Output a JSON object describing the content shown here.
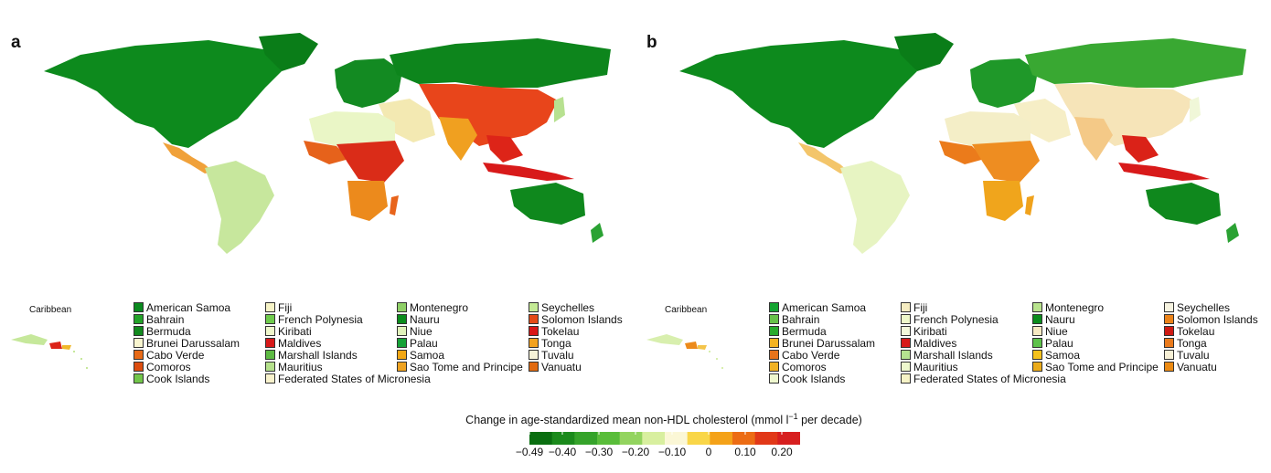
{
  "panels": [
    {
      "letter": "a",
      "caribbean_label": "Caribbean"
    },
    {
      "letter": "b",
      "caribbean_label": "Caribbean"
    }
  ],
  "legend_countries": [
    [
      "American Samoa",
      "Bahrain",
      "Bermuda",
      "Brunei Darussalam",
      "Cabo Verde",
      "Comoros",
      "Cook Islands"
    ],
    [
      "Fiji",
      "French Polynesia",
      "Kiribati",
      "Maldives",
      "Marshall Islands",
      "Mauritius",
      "Federated States of Micronesia"
    ],
    [
      "Montenegro",
      "Nauru",
      "Niue",
      "Palau",
      "Samoa",
      "Sao Tome and Principe"
    ],
    [
      "Seychelles",
      "Solomon Islands",
      "Tokelau",
      "Tonga",
      "Tuvalu",
      "Vanuatu"
    ]
  ],
  "legend_colors_a": [
    [
      "#0a8a1e",
      "#23a329",
      "#128a1f",
      "#f8f5cf",
      "#e86a16",
      "#dc4d0f",
      "#72c64a"
    ],
    [
      "#f6f3c6",
      "#6fcb4c",
      "#eff8cc",
      "#d71919",
      "#5dba43",
      "#b4e08b",
      "#f8f2cc"
    ],
    [
      "#8fd067",
      "#0b8c1d",
      "#e1f2bb",
      "#15a237",
      "#f2a714",
      "#eea220"
    ],
    [
      "#c4ea95",
      "#e44a16",
      "#d91616",
      "#f3a21f",
      "#f6f3d8",
      "#e16a10"
    ]
  ],
  "legend_colors_b": [
    [
      "#14a431",
      "#68c24a",
      "#29ab2c",
      "#f3b321",
      "#e8741c",
      "#f1b224",
      "#eff8cf"
    ],
    [
      "#f6edc2",
      "#eef8c9",
      "#f3f8da",
      "#d71a19",
      "#b5e290",
      "#eef8cd",
      "#f6f3c6"
    ],
    [
      "#b9e48e",
      "#0b8c1d",
      "#f7e9c2",
      "#5ec24b",
      "#f5c21c",
      "#ebab19"
    ],
    [
      "#f6f3e0",
      "#ec8319",
      "#cf1a13",
      "#eb7b1c",
      "#f7f0d6",
      "#eb8a13"
    ]
  ],
  "colorbar": {
    "title_before": "Change in age-standardized mean non-HDL cholesterol (mmol l",
    "title_sup": "−1",
    "title_after": " per decade)",
    "ticks": [
      "−0.49",
      "−0.40",
      "−0.30",
      "−0.20",
      "−0.10",
      "0",
      "0.10",
      "0.20"
    ],
    "tick_values": [
      -0.49,
      -0.4,
      -0.3,
      -0.2,
      -0.1,
      0,
      0.1,
      0.2
    ],
    "range": [
      -0.49,
      0.25
    ],
    "colors": [
      "#0a6e10",
      "#1b8a1c",
      "#35a32a",
      "#59bd3a",
      "#93d45f",
      "#d8ef9f",
      "#fbf7d6",
      "#f9d648",
      "#f4a219",
      "#ec6c14",
      "#e13818",
      "#d71f1f"
    ]
  }
}
